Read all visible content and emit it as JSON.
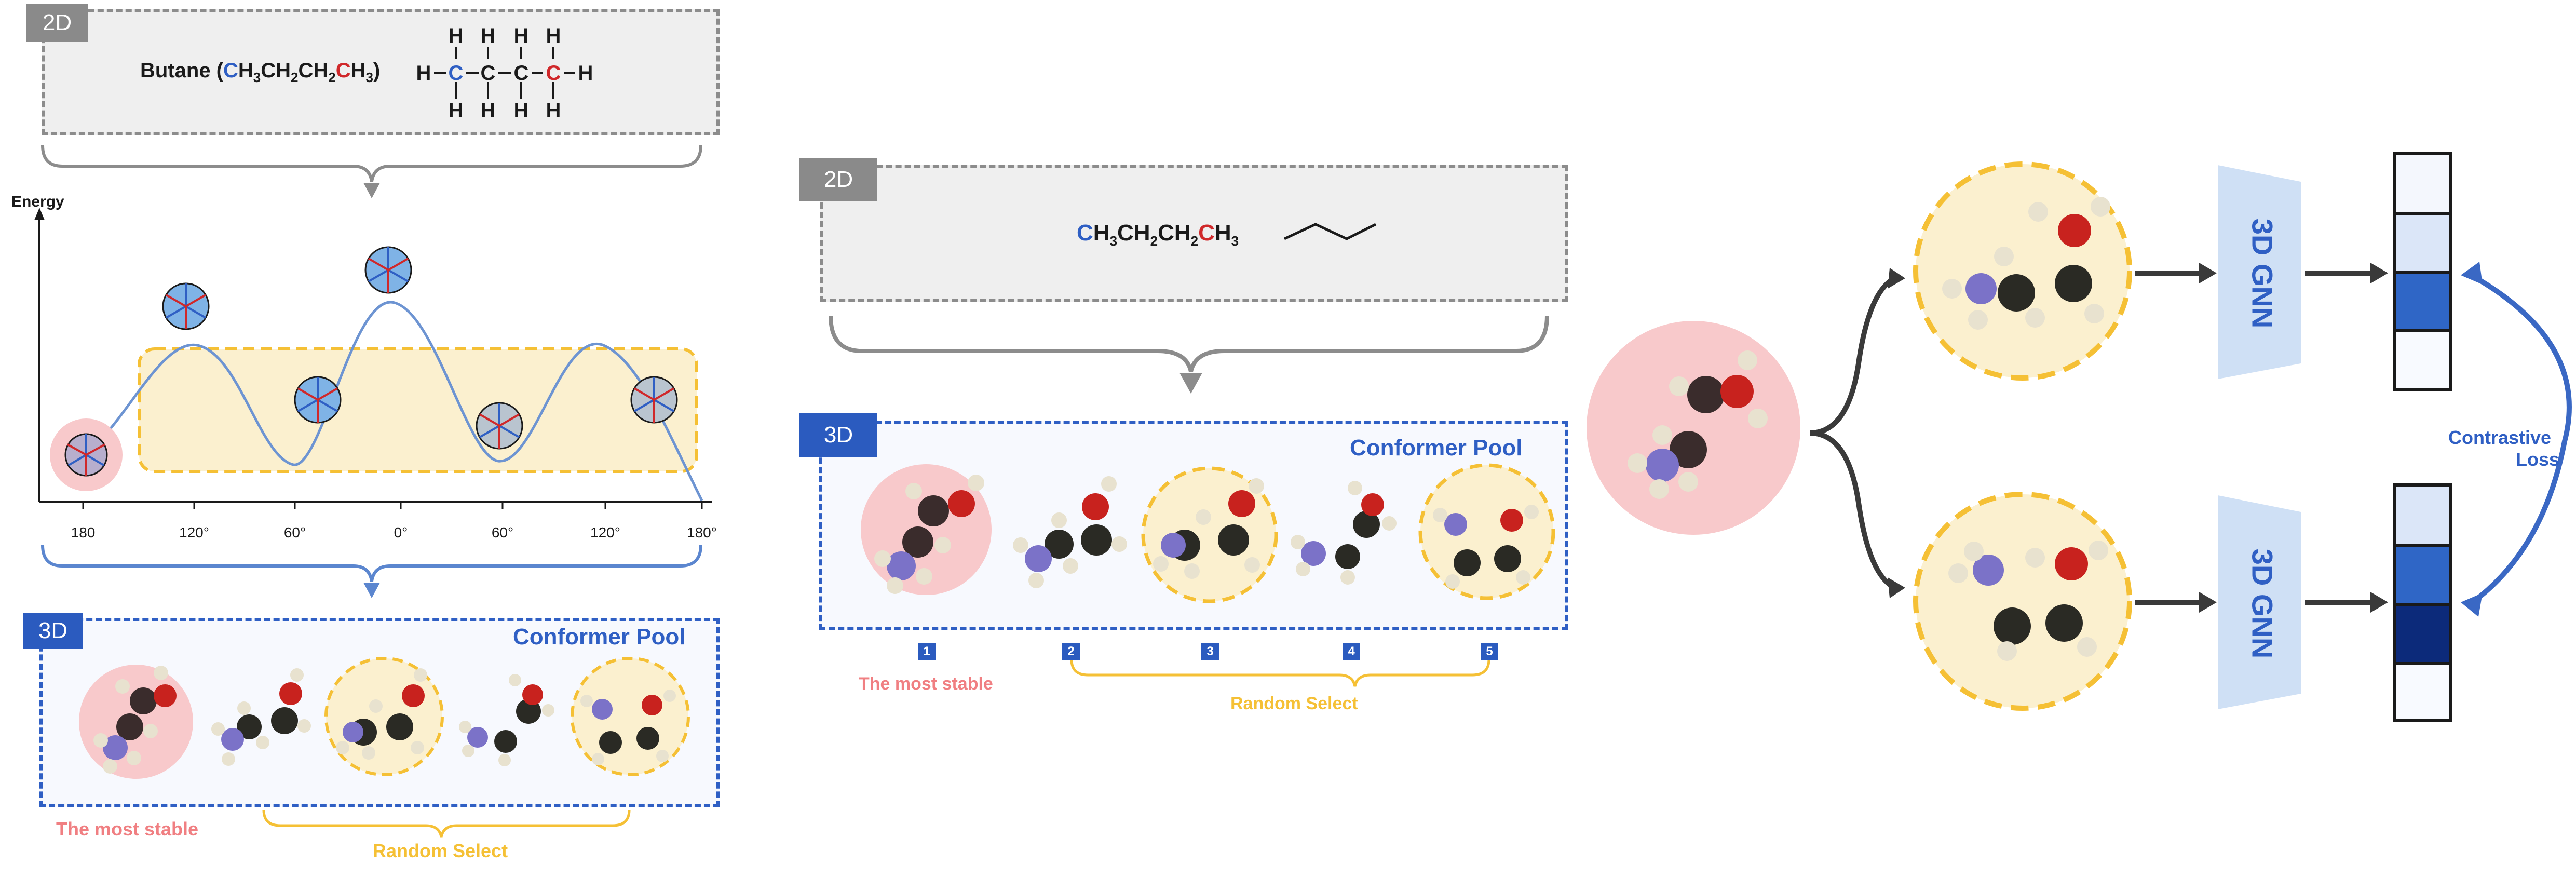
{
  "left_panel": {
    "tag_2d": "2D",
    "formula_name": "Butane (",
    "formula_c1": "C",
    "formula_mid": "H",
    "formula_sub1": "3",
    "formula_ch2a": "CH",
    "formula_sub2": "2",
    "formula_ch2b": "CH",
    "formula_sub3": "2",
    "formula_c4": "C",
    "formula_h3": "H",
    "formula_sub4": "3",
    "formula_close": ")",
    "energy_label": "Energy",
    "ticks": [
      "180",
      "120°",
      "60°",
      "0°",
      "60°",
      "120°",
      "180°"
    ],
    "tag_3d": "3D",
    "pool_title": "Conformer Pool",
    "most_stable": "The most stable",
    "random_select": "Random Select"
  },
  "middle_panel": {
    "tag_2d": "2D",
    "formula_c1": "C",
    "formula_h3": "H",
    "formula_sub1": "3",
    "formula_ch2a": "CH",
    "formula_sub2": "2",
    "formula_ch2b": "CH",
    "formula_sub3": "2",
    "formula_c4": "C",
    "formula_h3b": "H",
    "formula_sub4": "3",
    "tag_3d": "3D",
    "pool_title": "Conformer Pool",
    "badges": [
      "1",
      "2",
      "3",
      "4",
      "5"
    ],
    "most_stable": "The most stable",
    "random_select": "Random Select"
  },
  "right_panel": {
    "gnn_top": "3D GNN",
    "gnn_bottom": "3D GNN",
    "loss_line1": "Contrastive",
    "loss_line2": "Loss"
  },
  "colors": {
    "accent_blue": "#2f5fc4",
    "stable_pink": "#f8c9cb",
    "random_yellow": "#f5c035",
    "pool_yellow_fill": "#fbf0cf",
    "carbon": "#2a2a24",
    "oxygen": "#c8221e",
    "nitrogen": "#7b72c8",
    "hydrogen": "#e8e2cf",
    "embedding_light": "#dbe6f8",
    "embedding_mid": "#2f66c6",
    "embedding_dark": "#0c2a7a"
  }
}
